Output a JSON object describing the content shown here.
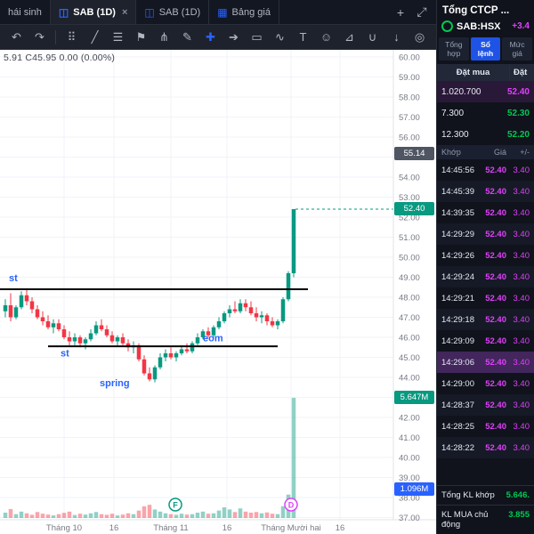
{
  "tabbar": {
    "tabs": [
      {
        "label": "hái sinh",
        "active": false,
        "closable": false,
        "icon": ""
      },
      {
        "label": "SAB (1D)",
        "active": true,
        "closable": true,
        "icon": "chart"
      },
      {
        "label": "SAB (1D)",
        "active": false,
        "closable": false,
        "icon": "chart"
      },
      {
        "label": "Bảng giá",
        "active": false,
        "closable": false,
        "icon": "grid"
      }
    ],
    "actions": [
      {
        "name": "add-tab-icon",
        "glyph": "+"
      },
      {
        "name": "expand-icon",
        "glyph": "⤢"
      }
    ]
  },
  "toolbar": {
    "left": [
      {
        "name": "undo-icon",
        "glyph": "↶"
      },
      {
        "name": "redo-icon",
        "glyph": "↷"
      }
    ],
    "tools": [
      {
        "name": "crosshair-tool-icon",
        "glyph": "⠿",
        "active": false
      },
      {
        "name": "trendline-tool-icon",
        "glyph": "╱",
        "active": false
      },
      {
        "name": "fib-tool-icon",
        "glyph": "☰",
        "active": false
      },
      {
        "name": "flag-tool-icon",
        "glyph": "⚑",
        "active": false
      },
      {
        "name": "pitchfork-tool-icon",
        "glyph": "⋔",
        "active": false
      },
      {
        "name": "brush-tool-icon",
        "glyph": "✎",
        "active": false
      },
      {
        "name": "cross-tool-icon",
        "glyph": "✚",
        "active": true
      },
      {
        "name": "marker-tool-icon",
        "glyph": "➔",
        "active": false
      },
      {
        "name": "shape-tool-icon",
        "glyph": "▭",
        "active": false
      },
      {
        "name": "wave-tool-icon",
        "glyph": "∿",
        "active": false
      },
      {
        "name": "text-tool-icon",
        "glyph": "T",
        "active": false
      },
      {
        "name": "emoji-tool-icon",
        "glyph": "☺",
        "active": false
      },
      {
        "name": "ruler-tool-icon",
        "glyph": "⊿",
        "active": false
      },
      {
        "name": "magnet-tool-icon",
        "glyph": "∪",
        "active": false
      }
    ],
    "right": [
      {
        "name": "arrow-down-tool-icon",
        "glyph": "↓"
      },
      {
        "name": "target-tool-icon",
        "glyph": "◎"
      }
    ]
  },
  "ohlc_line": "5.91  C45.95  0.00 (0.00%)",
  "chart": {
    "price_axis_labels": [
      "60.00",
      "59.00",
      "58.00",
      "57.00",
      "56.00",
      "55.00",
      "54.00",
      "53.00",
      "52.00",
      "51.00",
      "50.00",
      "49.00",
      "48.00",
      "47.00",
      "46.00",
      "45.00",
      "44.00",
      "43.00",
      "42.00",
      "41.00",
      "40.00",
      "39.00",
      "38.00",
      "37.00"
    ],
    "badges": [
      {
        "text": "55.14",
        "color": "#4f5562",
        "price": 55.14
      },
      {
        "text": "52.40",
        "color": "#089981",
        "price": 52.4
      },
      {
        "text": "5.647M",
        "color": "#089981",
        "y": 391
      },
      {
        "text": "1.096M",
        "color": "#2962ff",
        "y": 494
      }
    ],
    "time_axis": [
      {
        "label": "Tháng 10",
        "x": 72
      },
      {
        "label": "16",
        "x": 128
      },
      {
        "label": "Tháng 11",
        "x": 192
      },
      {
        "label": "16",
        "x": 255
      },
      {
        "label": "Tháng Mười hai",
        "x": 327
      },
      {
        "label": "16",
        "x": 382
      }
    ],
    "annotations": [
      {
        "text": "st",
        "x": 10,
        "price": 48.8
      },
      {
        "text": "st",
        "x": 68,
        "price": 45.05
      },
      {
        "text": "spring",
        "x": 112,
        "price": 43.55
      },
      {
        "text": "eom",
        "x": 228,
        "price": 45.8
      }
    ],
    "trend_lines": [
      {
        "price": 48.4,
        "x1": 0,
        "x2": 346
      },
      {
        "price": 45.55,
        "x1": 54,
        "x2": 312
      }
    ],
    "current_price_line": {
      "price": 52.4,
      "x1": 332,
      "color": "#089981"
    },
    "markers": [
      {
        "text": "F",
        "x": 197,
        "color": "#089981"
      },
      {
        "text": "D",
        "x": 327,
        "color": "#e040fb"
      }
    ]
  },
  "chart_data": {
    "type": "candlestick",
    "symbol": "SAB",
    "interval": "1D",
    "ylim": [
      37,
      60
    ],
    "colors": {
      "up": "#089981",
      "down": "#f23645"
    },
    "candles": [
      [
        47.3,
        47.9,
        47.0,
        47.6
      ],
      [
        47.6,
        48.2,
        46.8,
        47.0
      ],
      [
        47.0,
        47.6,
        46.9,
        47.5
      ],
      [
        47.5,
        48.3,
        47.4,
        48.1
      ],
      [
        48.1,
        48.45,
        47.6,
        47.8
      ],
      [
        47.8,
        48.0,
        47.2,
        47.4
      ],
      [
        47.4,
        47.6,
        46.9,
        47.0
      ],
      [
        47.0,
        47.3,
        46.6,
        46.8
      ],
      [
        46.8,
        47.1,
        46.4,
        46.5
      ],
      [
        46.5,
        46.9,
        46.2,
        46.7
      ],
      [
        46.7,
        46.9,
        46.3,
        46.4
      ],
      [
        46.4,
        46.6,
        45.9,
        46.0
      ],
      [
        46.0,
        46.3,
        45.6,
        45.8
      ],
      [
        45.8,
        46.2,
        45.6,
        46.0
      ],
      [
        46.0,
        46.1,
        45.5,
        45.7
      ],
      [
        45.7,
        46.0,
        45.4,
        45.9
      ],
      [
        45.9,
        46.4,
        45.8,
        46.2
      ],
      [
        46.2,
        46.8,
        46.1,
        46.6
      ],
      [
        46.6,
        46.9,
        46.3,
        46.4
      ],
      [
        46.4,
        46.6,
        46.0,
        46.1
      ],
      [
        46.1,
        46.3,
        45.7,
        45.8
      ],
      [
        45.8,
        46.1,
        45.6,
        46.0
      ],
      [
        46.0,
        46.2,
        45.6,
        45.7
      ],
      [
        45.7,
        45.9,
        45.3,
        45.5
      ],
      [
        45.5,
        45.8,
        45.2,
        45.6
      ],
      [
        45.6,
        45.7,
        44.8,
        44.9
      ],
      [
        44.9,
        45.1,
        44.1,
        44.2
      ],
      [
        44.2,
        44.5,
        43.8,
        43.9
      ],
      [
        43.9,
        44.6,
        43.75,
        44.5
      ],
      [
        44.5,
        45.2,
        44.4,
        45.0
      ],
      [
        45.0,
        45.4,
        44.8,
        45.2
      ],
      [
        45.2,
        45.5,
        44.9,
        45.0
      ],
      [
        45.0,
        45.3,
        44.8,
        45.2
      ],
      [
        45.2,
        45.6,
        45.1,
        45.4
      ],
      [
        45.4,
        45.7,
        45.2,
        45.3
      ],
      [
        45.3,
        45.8,
        45.2,
        45.7
      ],
      [
        45.7,
        46.2,
        45.6,
        46.0
      ],
      [
        46.0,
        46.4,
        45.9,
        46.3
      ],
      [
        46.3,
        46.5,
        46.0,
        46.1
      ],
      [
        46.1,
        46.6,
        46.0,
        46.5
      ],
      [
        46.5,
        47.0,
        46.4,
        46.8
      ],
      [
        46.8,
        47.3,
        46.7,
        47.2
      ],
      [
        47.2,
        47.6,
        47.0,
        47.4
      ],
      [
        47.4,
        47.8,
        47.2,
        47.3
      ],
      [
        47.3,
        47.9,
        47.2,
        47.7
      ],
      [
        47.7,
        47.9,
        47.3,
        47.5
      ],
      [
        47.5,
        47.8,
        47.1,
        47.2
      ],
      [
        47.2,
        47.5,
        46.8,
        47.0
      ],
      [
        47.0,
        47.3,
        46.7,
        47.1
      ],
      [
        47.1,
        47.2,
        46.6,
        46.8
      ],
      [
        46.8,
        47.0,
        46.5,
        46.6
      ],
      [
        46.6,
        46.9,
        46.4,
        46.8
      ],
      [
        46.8,
        48.0,
        46.7,
        47.9
      ],
      [
        47.9,
        49.3,
        47.8,
        49.2
      ],
      [
        49.2,
        52.4,
        49.0,
        52.4
      ]
    ],
    "volumes_m": [
      0.25,
      0.42,
      0.18,
      0.3,
      0.22,
      0.15,
      0.28,
      0.2,
      0.16,
      0.12,
      0.18,
      0.24,
      0.3,
      0.14,
      0.2,
      0.16,
      0.22,
      0.28,
      0.18,
      0.15,
      0.2,
      0.12,
      0.16,
      0.22,
      0.18,
      0.35,
      0.55,
      0.62,
      0.4,
      0.3,
      0.22,
      0.18,
      0.15,
      0.2,
      0.16,
      0.18,
      0.25,
      0.3,
      0.2,
      0.22,
      0.35,
      0.5,
      0.4,
      0.28,
      0.45,
      0.3,
      0.25,
      0.28,
      0.22,
      0.26,
      0.2,
      0.18,
      0.55,
      1.1,
      5.647
    ]
  },
  "panel": {
    "title": "Tổng CTCP ...",
    "symbol": "SAB:HSX",
    "change": "+3.4",
    "tabs": [
      {
        "lines": [
          "Tổng",
          "hợp"
        ],
        "active": false
      },
      {
        "lines": [
          "Sổ",
          "lệnh"
        ],
        "active": true
      },
      {
        "lines": [
          "Mức",
          "giá"
        ],
        "active": false
      }
    ],
    "order_headers": [
      "Đặt mua",
      "Đặt"
    ],
    "book": [
      {
        "vol": "1.020.700",
        "price": "52.40",
        "cls": "ceil",
        "hl": true
      },
      {
        "vol": "7.300",
        "price": "52.30",
        "cls": "up",
        "hl": false
      },
      {
        "vol": "12.300",
        "price": "52.20",
        "cls": "up",
        "hl": false
      }
    ],
    "trade_headers": [
      "Khớp",
      "Giá",
      "+/-"
    ],
    "trades": [
      {
        "time": "14:45:56",
        "price": "52.40",
        "chg": "3.40",
        "selected": false
      },
      {
        "time": "14:45:39",
        "price": "52.40",
        "chg": "3.40",
        "selected": false
      },
      {
        "time": "14:39:35",
        "price": "52.40",
        "chg": "3.40",
        "selected": false
      },
      {
        "time": "14:29:29",
        "price": "52.40",
        "chg": "3.40",
        "selected": false
      },
      {
        "time": "14:29:26",
        "price": "52.40",
        "chg": "3.40",
        "selected": false
      },
      {
        "time": "14:29:24",
        "price": "52.40",
        "chg": "3.40",
        "selected": false
      },
      {
        "time": "14:29:21",
        "price": "52.40",
        "chg": "3.40",
        "selected": false
      },
      {
        "time": "14:29:18",
        "price": "52.40",
        "chg": "3.40",
        "selected": false
      },
      {
        "time": "14:29:09",
        "price": "52.40",
        "chg": "3.40",
        "selected": false
      },
      {
        "time": "14:29:06",
        "price": "52.40",
        "chg": "3.40",
        "selected": true
      },
      {
        "time": "14:29:00",
        "price": "52.40",
        "chg": "3.40",
        "selected": false
      },
      {
        "time": "14:28:37",
        "price": "52.40",
        "chg": "3.40",
        "selected": false
      },
      {
        "time": "14:28:25",
        "price": "52.40",
        "chg": "3.40",
        "selected": false
      },
      {
        "time": "14:28:22",
        "price": "52.40",
        "chg": "3.40",
        "selected": false
      }
    ],
    "totals": [
      {
        "label": "Tổng KL khớp",
        "value": "5.646."
      },
      {
        "label": "KL MUA chủ động",
        "value": "3.855"
      }
    ]
  }
}
